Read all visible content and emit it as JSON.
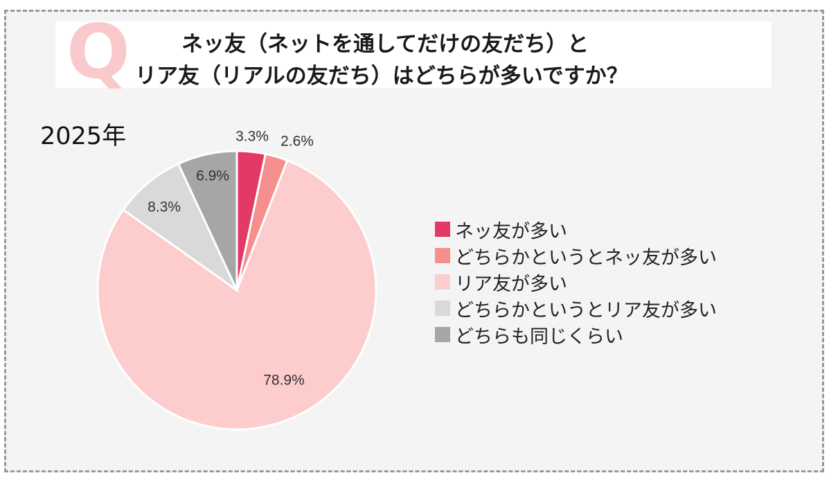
{
  "header": {
    "q_mark": "Q",
    "title_line1": "ネッ友（ネットを通してだけの友だち）と",
    "title_line2": "リア友（リアルの友だち）はどちらが多いですか？"
  },
  "chart_data": {
    "type": "pie",
    "title": "2025年",
    "slices": [
      {
        "label": "ネッ友が多い",
        "value": 3.3,
        "display": "3.3%",
        "color": "#e23a64"
      },
      {
        "label": "どちらかというとネッ友が多い",
        "value": 2.6,
        "display": "2.6%",
        "color": "#f68e8e"
      },
      {
        "label": "リア友が多い",
        "value": 78.9,
        "display": "78.9%",
        "color": "#fdcccc"
      },
      {
        "label": "どちらかというとリア友が多い",
        "value": 8.3,
        "display": "8.3%",
        "color": "#d9d9d9"
      },
      {
        "label": "どちらも同じくらい",
        "value": 6.9,
        "display": "6.9%",
        "color": "#a6a6a6"
      }
    ],
    "legend_position": "right"
  }
}
